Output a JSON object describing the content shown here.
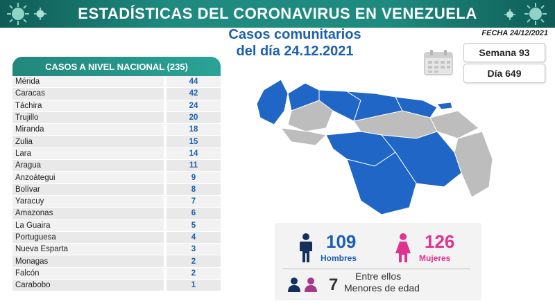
{
  "banner": {
    "title": "ESTADÍSTICAS DEL CORONAVIRUS EN VENEZUELA"
  },
  "subtitle": {
    "line1": "Casos comunitarios",
    "line2": "del día 24.12.2021"
  },
  "fecha": "FECHA 24/12/2021",
  "stats": {
    "semana": "Semana 93",
    "dia": "Día 649"
  },
  "national": {
    "header": "CASOS A NIVEL NACIONAL  (235)",
    "rows": [
      {
        "name": "Mérida",
        "value": "44"
      },
      {
        "name": "Caracas",
        "value": "42"
      },
      {
        "name": "Táchira",
        "value": "24"
      },
      {
        "name": "Trujillo",
        "value": "20"
      },
      {
        "name": "Miranda",
        "value": "18"
      },
      {
        "name": "Zulia",
        "value": "15"
      },
      {
        "name": "Lara",
        "value": "14"
      },
      {
        "name": "Aragua",
        "value": "11"
      },
      {
        "name": "Anzoátegui",
        "value": "9"
      },
      {
        "name": "Bolívar",
        "value": "8"
      },
      {
        "name": "Yaracuy",
        "value": "7"
      },
      {
        "name": "Amazonas",
        "value": "6"
      },
      {
        "name": "La Guaira",
        "value": "5"
      },
      {
        "name": "Portuguesa",
        "value": "4"
      },
      {
        "name": "Nueva Esparta",
        "value": "3"
      },
      {
        "name": "Monagas",
        "value": "2"
      },
      {
        "name": "Falcón",
        "value": "2"
      },
      {
        "name": "Carabobo",
        "value": "1"
      }
    ]
  },
  "gender": {
    "men_count": "109",
    "men_label": "Hombres",
    "women_count": "126",
    "women_label": "Mujeres"
  },
  "minors": {
    "intro": "Entre ellos",
    "count": "7",
    "label": "Menores de edad"
  },
  "colors": {
    "banner": "#1f8a7f",
    "accent_blue": "#1b5fb0",
    "accent_pink": "#e0338f",
    "map_gray": "#bdbdbd"
  },
  "icons": [
    "virus-icon",
    "calendar-icon",
    "male-icon",
    "female-icon",
    "children-icon"
  ]
}
